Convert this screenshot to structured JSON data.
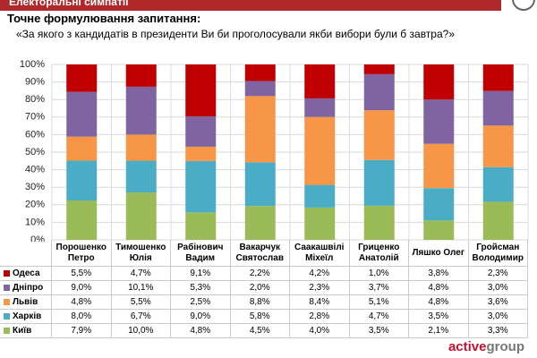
{
  "header": {
    "section": "Електоральні симпатії"
  },
  "question": {
    "label": "Точне формулювання запитання:",
    "text": "«За якого з кандидатів в президенти Ви би проголосували якби вибори були б завтра?»"
  },
  "logo": [
    "active",
    "group"
  ],
  "chart_data": {
    "type": "stacked_bar_100",
    "categories": [
      "Порошенко Петро",
      "Тимошенко Юлія",
      "Рабінович Вадим",
      "Вакарчук Святослав",
      "Саакашвілі Міхеїл",
      "Гриценко Анатолій",
      "Ляшко Олег",
      "Гройсман Володимир"
    ],
    "series": [
      {
        "name": "Одеса",
        "color": "#c00000",
        "values": [
          5.5,
          4.7,
          9.1,
          2.2,
          4.2,
          1.0,
          3.8,
          2.3
        ],
        "value_labels": [
          "5,5%",
          "4,7%",
          "9,1%",
          "2,2%",
          "4,2%",
          "1,0%",
          "3,8%",
          "2,3%"
        ]
      },
      {
        "name": "Дніпро",
        "color": "#8064a2",
        "values": [
          9.0,
          10.1,
          5.3,
          2.0,
          2.3,
          3.7,
          4.8,
          3.0
        ],
        "value_labels": [
          "9,0%",
          "10,1%",
          "5,3%",
          "2,0%",
          "2,3%",
          "3,7%",
          "4,8%",
          "3,0%"
        ]
      },
      {
        "name": "Львів",
        "color": "#f79646",
        "values": [
          4.8,
          5.5,
          2.5,
          8.8,
          8.4,
          5.1,
          4.8,
          3.6
        ],
        "value_labels": [
          "4,8%",
          "5,5%",
          "2,5%",
          "8,8%",
          "8,4%",
          "5,1%",
          "4,8%",
          "3,6%"
        ]
      },
      {
        "name": "Харків",
        "color": "#4bacc6",
        "values": [
          8.0,
          6.7,
          9.0,
          5.8,
          2.8,
          4.7,
          3.5,
          3.0
        ],
        "value_labels": [
          "8,0%",
          "6,7%",
          "9,0%",
          "5,8%",
          "2,8%",
          "4,7%",
          "3,5%",
          "3,0%"
        ]
      },
      {
        "name": "Київ",
        "color": "#9bbb59",
        "values": [
          7.9,
          10.0,
          4.8,
          4.5,
          4.0,
          3.5,
          2.1,
          3.3
        ],
        "value_labels": [
          "7,9%",
          "10,0%",
          "4,8%",
          "4,5%",
          "4,0%",
          "3,5%",
          "2,1%",
          "3,3%"
        ]
      }
    ],
    "ylim": [
      0,
      100
    ],
    "yticks": [
      {
        "value": 0,
        "label": "0%"
      },
      {
        "value": 10,
        "label": "10%"
      },
      {
        "value": 20,
        "label": "20%"
      },
      {
        "value": 30,
        "label": "30%"
      },
      {
        "value": 40,
        "label": "40%"
      },
      {
        "value": 50,
        "label": "50%"
      },
      {
        "value": 60,
        "label": "60%"
      },
      {
        "value": 70,
        "label": "70%"
      },
      {
        "value": 80,
        "label": "80%"
      },
      {
        "value": 90,
        "label": "90%"
      },
      {
        "value": 100,
        "label": "100%"
      }
    ],
    "grid": true
  }
}
